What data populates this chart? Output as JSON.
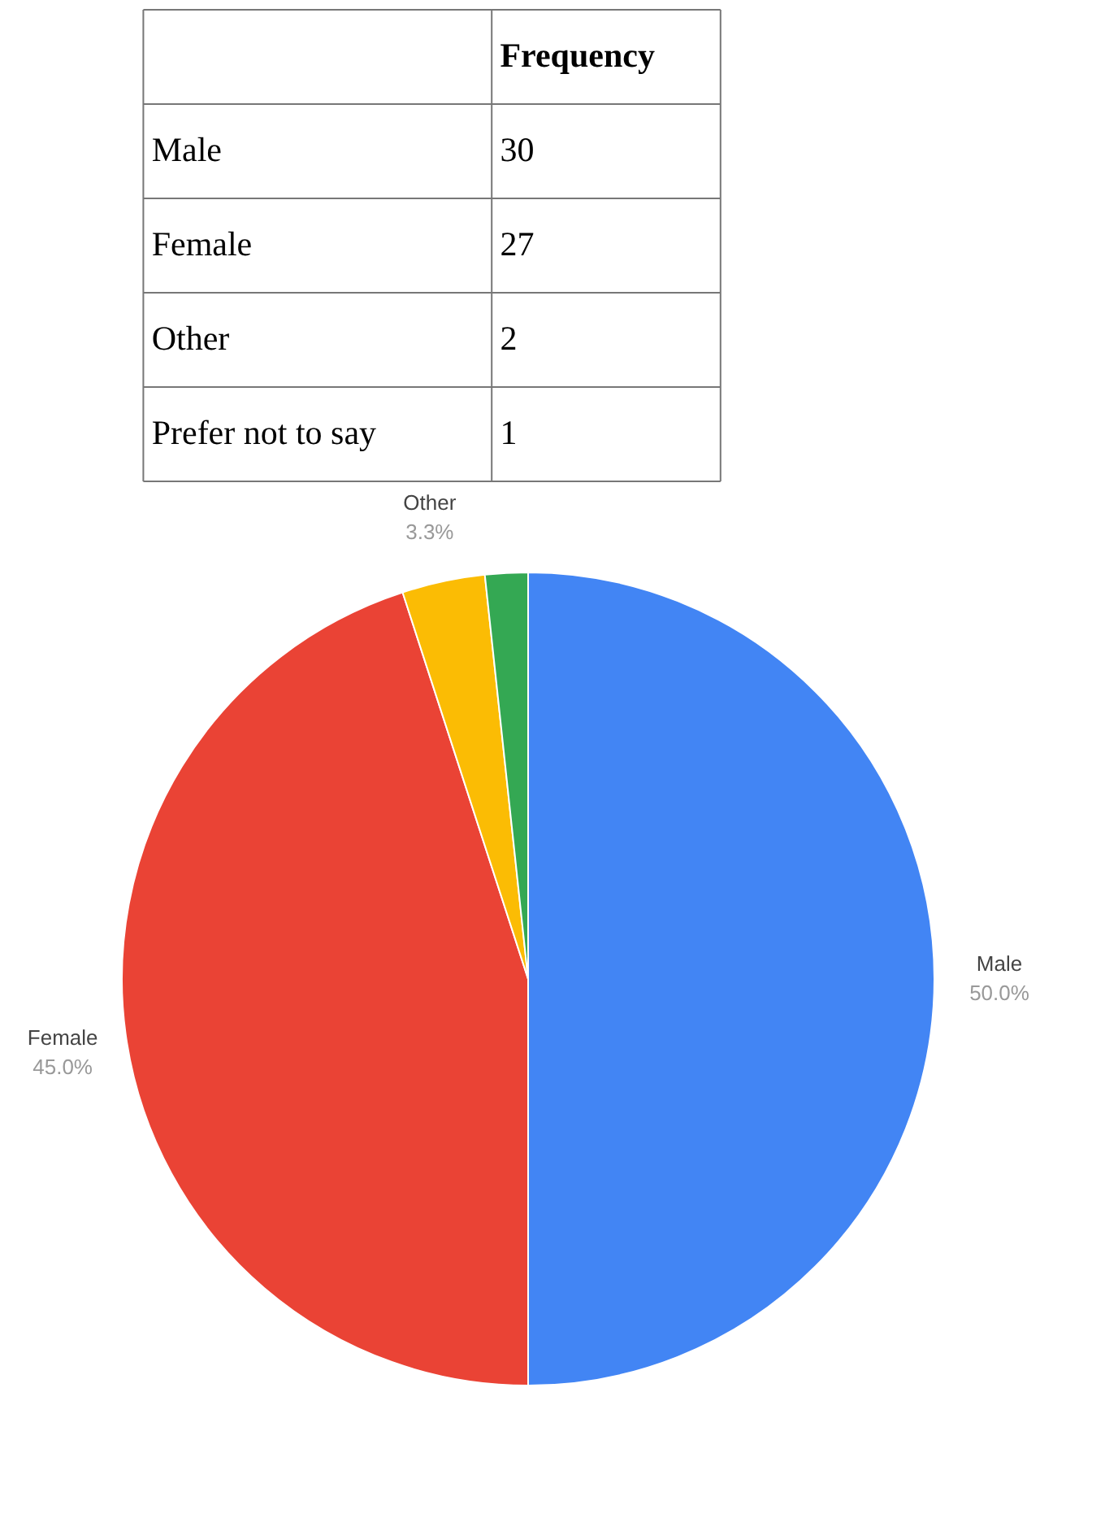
{
  "chart_data": [
    {
      "type": "other",
      "legend_title": "Frequency",
      "categories": [
        "Male",
        "Female",
        "Other",
        "Prefer not to say"
      ],
      "values": [
        30,
        27,
        2,
        1
      ],
      "data_labels": true
    },
    {
      "type": "pie",
      "categories": [
        "Male",
        "Female",
        "Other",
        null
      ],
      "values": [
        50.0,
        45.0,
        3.3,
        1.7
      ],
      "colors": [
        "#4285f4",
        "#ea4335",
        "#fbbc04",
        "#34a853"
      ],
      "value_labels": [
        "50.0%",
        "45.0%",
        "3.3%",
        null
      ]
    }
  ]
}
